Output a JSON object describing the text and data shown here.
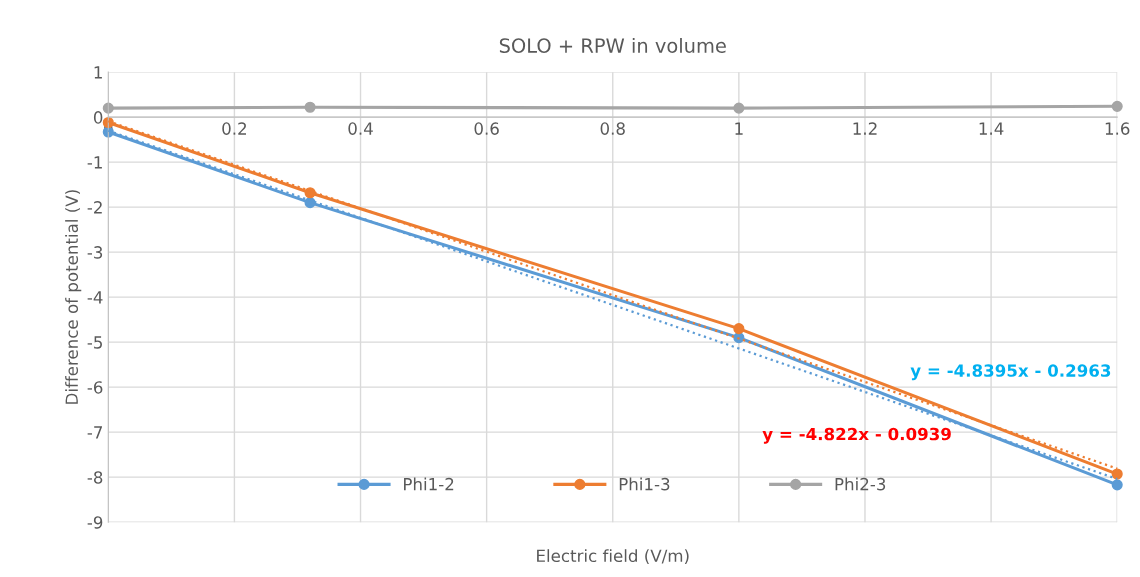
{
  "chart_data": {
    "type": "line",
    "title": "SOLO + RPW in volume",
    "xlabel": "Electric field (V/m)",
    "ylabel": "Difference of potential (V)",
    "x": [
      0,
      0.32,
      1,
      1.6
    ],
    "series": [
      {
        "name": "Phi1-2",
        "color": "#5b9bd5",
        "values": [
          -0.33,
          -1.9,
          -4.9,
          -8.17
        ]
      },
      {
        "name": "Phi1-3",
        "color": "#ed7d31",
        "values": [
          -0.12,
          -1.68,
          -4.7,
          -7.93
        ]
      },
      {
        "name": "Phi2-3",
        "color": "#a5a5a5",
        "values": [
          0.2,
          0.22,
          0.2,
          0.24
        ]
      },
      {
        "type": "line",
        "color": "#5b9bd5",
        "values": [
          -0.3,
          -1.85,
          -5.14,
          -8.04
        ],
        "marker": "none",
        "line_style": "dotted"
      },
      {
        "type": "line",
        "color": "#ed7d31",
        "values": [
          -0.09,
          -1.64,
          -4.92,
          -7.81
        ],
        "marker": "none",
        "line_style": "dotted"
      }
    ],
    "annotations": [
      "y = -4.8395x - 0.2963",
      "y = -4.822x - 0.0939"
    ],
    "xlim": [
      0,
      1.6
    ],
    "xticks": [
      0,
      0.2,
      0.4,
      0.6,
      0.8,
      1,
      1.2,
      1.4,
      1.6
    ],
    "ylim": [
      -9,
      1
    ],
    "yticks": [
      -9,
      -8,
      -7,
      -6,
      -5,
      -4,
      -3,
      -2,
      -1,
      0,
      1
    ],
    "grid": true,
    "legend": "bottom",
    "marker": "circle",
    "line_style": "solid"
  }
}
